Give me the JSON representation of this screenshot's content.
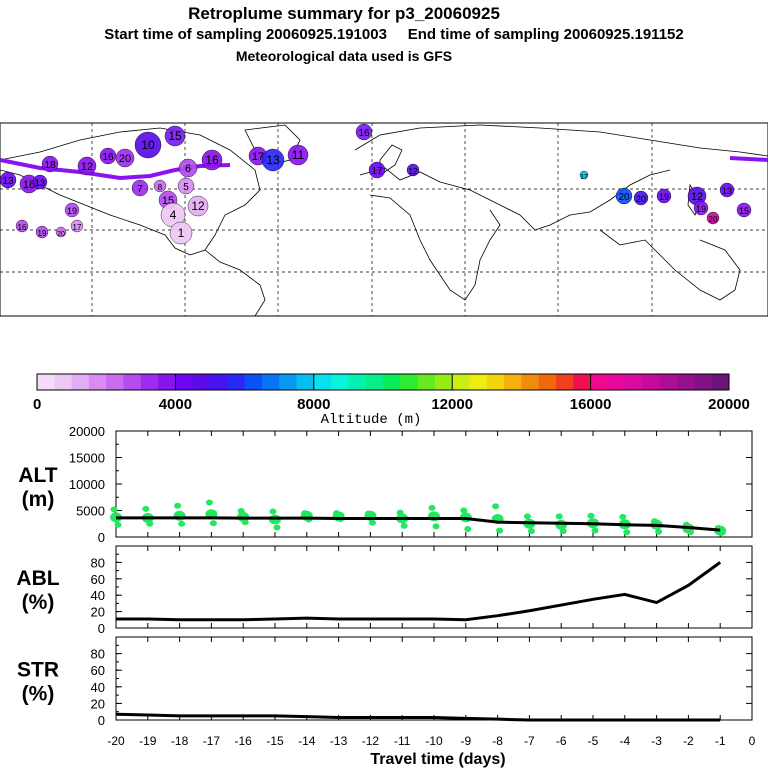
{
  "header": {
    "title": "Retroplume summary for p3_20060925",
    "sampling": "Start time of sampling 20060925.191003     End time of sampling 20060925.191152",
    "met": "Meteorological data used is GFS"
  },
  "colorbar": {
    "colors": [
      "#f4dcf8",
      "#eec8f6",
      "#e4aef4",
      "#d88cf2",
      "#c86cf0",
      "#b44cee",
      "#9e2cf0",
      "#8a14f0",
      "#6e08f4",
      "#5a0ce8",
      "#4614f0",
      "#2a28f8",
      "#0c50f8",
      "#0876f4",
      "#0898f0",
      "#08bef0",
      "#08e0ee",
      "#06f6dc",
      "#06f0b0",
      "#06ee86",
      "#08ec5a",
      "#30ea30",
      "#64ea1e",
      "#98ec16",
      "#c8ee12",
      "#eeee0e",
      "#f4d40c",
      "#f4b00c",
      "#f08c0c",
      "#f06a0c",
      "#f04020",
      "#f01050",
      "#f00890",
      "#e8089c",
      "#d80aa0",
      "#c40c9c",
      "#ac0e96",
      "#96108e",
      "#821286",
      "#6c1478"
    ],
    "ticks": [
      "0",
      "4000",
      "8000",
      "12000",
      "16000",
      "20000"
    ],
    "label": "Altitude (m)"
  },
  "map": {
    "labels": [
      "15",
      "16",
      "10",
      "16",
      "17",
      "13",
      "11",
      "18",
      "20",
      "12",
      "16",
      "6",
      "7",
      "13",
      "18",
      "13",
      "17",
      "12",
      "16",
      "19",
      "20",
      "19",
      "17",
      "20",
      "20",
      "19",
      "12",
      "13",
      "15",
      "20",
      "19",
      "17",
      "15",
      "12",
      "4",
      "1",
      "5",
      "8"
    ]
  },
  "chart_data": [
    {
      "type": "line",
      "panel": "ALT",
      "ylabel": "ALT (m)",
      "ylim": [
        0,
        20000
      ],
      "yticks": [
        "20000",
        "15000",
        "10000",
        "5000",
        "0"
      ],
      "x": [
        -20,
        -19,
        -18,
        -17,
        -16,
        -15,
        -14,
        -13,
        -12,
        -11,
        -10,
        -9,
        -8,
        -7,
        -6,
        -5,
        -4,
        -3,
        -2,
        -1
      ],
      "series": [
        {
          "name": "median altitude",
          "values": [
            3600,
            3600,
            3600,
            3600,
            3550,
            3550,
            3550,
            3500,
            3500,
            3500,
            3500,
            3500,
            2800,
            2700,
            2600,
            2500,
            2300,
            2200,
            1800,
            1300
          ]
        }
      ],
      "scatter_y": [
        [
          5200,
          3700,
          2300
        ],
        [
          5300,
          3600,
          2500
        ],
        [
          5900,
          4000,
          2500
        ],
        [
          6500,
          4300,
          2600
        ],
        [
          4900,
          3800,
          2800
        ],
        [
          4800,
          3300,
          1800
        ],
        [
          4500,
          4000,
          3300
        ],
        [
          4500,
          3900,
          3400
        ],
        [
          4400,
          4000,
          2700
        ],
        [
          4600,
          3500,
          2100
        ],
        [
          5500,
          3900,
          2000
        ],
        [
          5000,
          3700,
          1500
        ],
        [
          5800,
          3400,
          1200
        ],
        [
          3900,
          2500,
          1100
        ],
        [
          3900,
          2300,
          1100
        ],
        [
          4000,
          2600,
          1200
        ],
        [
          3800,
          2400,
          900
        ],
        [
          3000,
          2300,
          1000
        ],
        [
          2300,
          1600,
          900
        ],
        [
          1700,
          1200,
          800
        ]
      ]
    },
    {
      "type": "line",
      "panel": "ABL",
      "ylabel": "ABL (%)",
      "ylim": [
        0,
        100
      ],
      "yticks": [
        "80",
        "60",
        "40",
        "20",
        "0"
      ],
      "x": [
        -20,
        -19,
        -18,
        -17,
        -16,
        -15,
        -14,
        -13,
        -12,
        -11,
        -10,
        -9,
        -8,
        -7,
        -6,
        -5,
        -4,
        -3,
        -2,
        -1
      ],
      "series": [
        {
          "name": "ABL fraction",
          "values": [
            11,
            11,
            10,
            10,
            10,
            11,
            12,
            11,
            11,
            11,
            11,
            10,
            15,
            21,
            28,
            35,
            41,
            31,
            52,
            80
          ]
        }
      ]
    },
    {
      "type": "line",
      "panel": "STR",
      "ylabel": "STR (%)",
      "ylim": [
        0,
        100
      ],
      "yticks": [
        "80",
        "60",
        "40",
        "20",
        "0"
      ],
      "x": [
        -20,
        -19,
        -18,
        -17,
        -16,
        -15,
        -14,
        -13,
        -12,
        -11,
        -10,
        -9,
        -8,
        -7,
        -6,
        -5,
        -4,
        -3,
        -2,
        -1
      ],
      "series": [
        {
          "name": "STR fraction",
          "values": [
            7,
            6,
            5,
            5,
            5,
            5,
            4,
            3,
            3,
            3,
            3,
            2,
            1,
            0,
            0,
            0,
            0,
            0,
            0,
            0
          ]
        }
      ]
    }
  ],
  "xaxis": {
    "ticks": [
      "-20",
      "-19",
      "-18",
      "-17",
      "-16",
      "-15",
      "-14",
      "-13",
      "-12",
      "-11",
      "-10",
      "-9",
      "-8",
      "-7",
      "-6",
      "-5",
      "-4",
      "-3",
      "-2",
      "-1",
      "0"
    ],
    "label": "Travel time (days)"
  }
}
